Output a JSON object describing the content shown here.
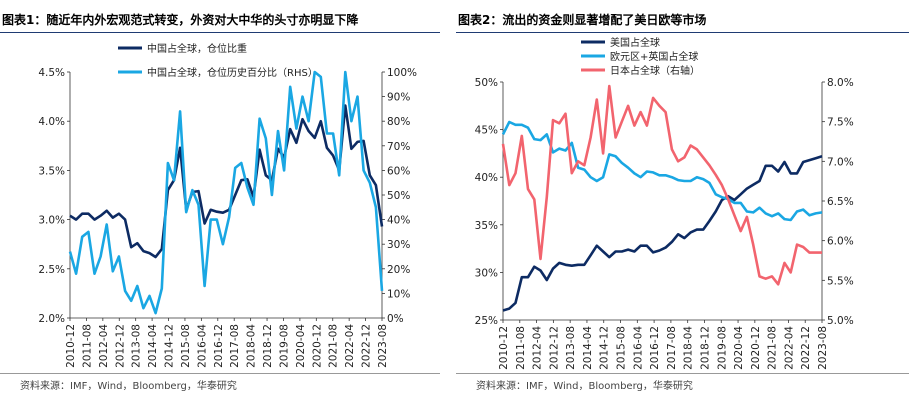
{
  "left": {
    "title": "图表1：随近年内外宏观范式转变，外资对大中华的头寸亦明显下降",
    "source": "资料来源：IMF，Wind，Bloomberg，华泰研究",
    "chart_data": {
      "type": "line",
      "x_categories": [
        "2010-12",
        "2011-08",
        "2012-04",
        "2012-12",
        "2013-08",
        "2014-04",
        "2014-12",
        "2015-08",
        "2016-04",
        "2016-12",
        "2017-08",
        "2018-04",
        "2018-12",
        "2019-08",
        "2020-04",
        "2020-12",
        "2021-08",
        "2022-04",
        "2022-12",
        "2023-08"
      ],
      "quarters": 52,
      "ylim_left": [
        2.0,
        4.5
      ],
      "yticks_left": [
        "2.0%",
        "2.5%",
        "3.0%",
        "3.5%",
        "4.0%",
        "4.5%"
      ],
      "ylim_right": [
        0,
        100
      ],
      "yticks_right": [
        "0%",
        "10%",
        "20%",
        "30%",
        "40%",
        "50%",
        "60%",
        "70%",
        "80%",
        "90%",
        "100%"
      ],
      "series": [
        {
          "name": "中国占全球，仓位比重",
          "axis": "left",
          "color": "#0d2b63",
          "values": [
            3.04,
            3.0,
            3.06,
            3.06,
            3.0,
            3.04,
            3.09,
            3.02,
            3.06,
            3.0,
            2.72,
            2.76,
            2.68,
            2.66,
            2.62,
            2.7,
            3.3,
            3.4,
            3.73,
            3.1,
            3.28,
            3.29,
            2.96,
            3.1,
            3.08,
            3.07,
            3.1,
            3.25,
            3.4,
            3.41,
            3.23,
            3.71,
            3.45,
            3.4,
            3.72,
            3.63,
            3.92,
            3.78,
            4.02,
            3.9,
            3.83,
            4.0,
            3.73,
            3.65,
            3.5,
            4.16,
            3.72,
            3.79,
            3.8,
            3.45,
            3.35,
            2.93
          ]
        },
        {
          "name": "中国占全球，仓位历史百分比（RHS）",
          "axis": "right",
          "color": "#1aa7e3",
          "values": [
            27,
            18,
            33,
            35,
            18,
            25,
            38,
            19,
            25,
            11,
            7,
            13,
            4,
            9,
            2,
            12,
            63,
            56,
            84,
            43,
            52,
            46,
            13,
            40,
            40,
            30,
            41,
            61,
            63,
            53,
            46,
            81,
            73,
            50,
            76,
            60,
            94,
            77,
            90,
            80,
            100,
            98,
            75,
            75,
            58,
            100,
            80,
            90,
            60,
            55,
            45,
            11
          ]
        }
      ],
      "legend_placement": "top-left"
    }
  },
  "right": {
    "title": "图表2：流出的资金则显著增配了美日欧等市场",
    "source": "资料来源：IMF，Wind，Bloomberg，华泰研究",
    "chart_data": {
      "type": "line",
      "x_categories": [
        "2010-12",
        "2011-08",
        "2012-04",
        "2012-12",
        "2013-08",
        "2014-04",
        "2014-12",
        "2015-08",
        "2016-04",
        "2016-12",
        "2017-08",
        "2018-04",
        "2018-12",
        "2019-08",
        "2020-04",
        "2020-12",
        "2021-08",
        "2022-04",
        "2022-12",
        "2023-08"
      ],
      "quarters": 52,
      "ylim_left": [
        25,
        50
      ],
      "yticks_left": [
        "25%",
        "30%",
        "35%",
        "40%",
        "45%",
        "50%"
      ],
      "ylim_right": [
        5.0,
        8.0
      ],
      "yticks_right": [
        "5.0%",
        "5.5%",
        "6.0%",
        "6.5%",
        "7.0%",
        "7.5%",
        "8.0%"
      ],
      "series": [
        {
          "name": "美国占全球",
          "axis": "left",
          "color": "#0d2b63",
          "values": [
            26.0,
            26.2,
            26.8,
            29.5,
            29.5,
            30.6,
            30.2,
            29.2,
            30.4,
            31.0,
            30.8,
            30.7,
            30.8,
            30.8,
            31.8,
            32.8,
            32.2,
            31.6,
            32.2,
            32.2,
            32.4,
            32.2,
            32.8,
            32.8,
            32.1,
            32.3,
            32.6,
            33.2,
            34.0,
            33.6,
            34.2,
            34.5,
            34.5,
            35.4,
            36.4,
            37.6,
            38.0,
            37.6,
            38.2,
            38.8,
            39.2,
            39.6,
            41.2,
            41.2,
            40.6,
            41.6,
            40.4,
            40.4,
            41.6,
            41.8,
            42.0,
            42.2
          ]
        },
        {
          "name": "欧元区+英国占全球",
          "axis": "left",
          "color": "#1aa7e3",
          "values": [
            44.5,
            45.8,
            45.5,
            45.5,
            45.2,
            44.0,
            43.9,
            44.5,
            42.6,
            43.0,
            42.8,
            43.6,
            41.0,
            40.8,
            40.0,
            39.6,
            40.0,
            42.4,
            42.2,
            41.5,
            41.0,
            40.4,
            40.0,
            40.6,
            40.5,
            40.2,
            40.2,
            40.0,
            39.7,
            39.6,
            39.6,
            40.0,
            39.8,
            39.4,
            38.2,
            37.9,
            37.7,
            37.3,
            37.3,
            36.4,
            36.3,
            36.8,
            36.2,
            35.9,
            36.2,
            35.6,
            35.5,
            36.4,
            36.6,
            36.0,
            36.2,
            36.3
          ]
        },
        {
          "name": "日本占全球（右轴）",
          "axis": "right",
          "color": "#f2646e",
          "values": [
            7.22,
            6.7,
            6.85,
            7.32,
            6.65,
            6.52,
            5.77,
            6.55,
            7.52,
            7.48,
            7.6,
            6.85,
            7.0,
            6.95,
            7.3,
            7.78,
            7.1,
            7.95,
            7.3,
            7.5,
            7.7,
            7.45,
            7.62,
            7.45,
            7.8,
            7.7,
            7.62,
            7.15,
            7.0,
            7.05,
            7.2,
            7.15,
            7.05,
            6.95,
            6.83,
            6.7,
            6.52,
            6.32,
            6.12,
            6.3,
            5.95,
            5.55,
            5.52,
            5.55,
            5.45,
            5.72,
            5.6,
            5.95,
            5.92,
            5.85,
            5.85,
            5.85
          ]
        }
      ],
      "legend_placement": "top-left"
    }
  }
}
